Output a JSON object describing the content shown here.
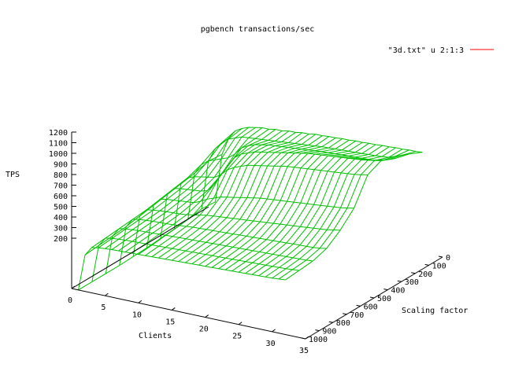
{
  "chart_data": {
    "type": "surface",
    "title": "pgbench transactions/sec",
    "xlabel": "Clients",
    "ylabel": "Scaling factor",
    "zlabel": "TPS",
    "legend": {
      "label": "\"3d.txt\" u 2:1:3",
      "position": "top-right"
    },
    "xlim": [
      0,
      35
    ],
    "ylim": [
      0,
      1000
    ],
    "zlim": [
      200,
      1200
    ],
    "x_ticks": [
      "0",
      "5",
      "10",
      "15",
      "20",
      "25",
      "30",
      "35"
    ],
    "y_ticks": [
      "0",
      "100",
      "200",
      "300",
      "400",
      "500",
      "600",
      "700",
      "800",
      "900",
      "1000"
    ],
    "z_ticks": [
      "200",
      "300",
      "400",
      "500",
      "600",
      "700",
      "800",
      "900",
      "1000",
      "1100",
      "1200"
    ],
    "grid": false,
    "colors": {
      "surface_top": "#00c000",
      "surface_underside": "#ff0000",
      "axes": "#000000"
    },
    "series": [
      {
        "scale": 0,
        "tps": [
          250,
          640,
          780,
          850,
          880,
          900,
          910,
          920,
          920,
          930,
          930,
          940,
          940,
          950,
          950,
          960,
          960,
          965,
          965,
          970,
          970,
          975,
          975,
          980,
          980,
          985,
          985,
          990,
          990,
          995,
          995,
          1000
        ]
      },
      {
        "scale": 100,
        "tps": [
          260,
          650,
          760,
          820,
          860,
          880,
          900,
          905,
          910,
          915,
          920,
          925,
          930,
          935,
          940,
          945,
          950,
          955,
          960,
          962,
          965,
          968,
          970,
          972,
          975,
          978,
          980,
          985,
          990,
          1010,
          1030,
          1050
        ]
      },
      {
        "scale": 200,
        "tps": [
          240,
          620,
          700,
          740,
          760,
          780,
          800,
          840,
          900,
          930,
          950,
          960,
          970,
          975,
          980,
          985,
          990,
          995,
          1000,
          1005,
          1010,
          1012,
          1015,
          1018,
          1020,
          1022,
          1025,
          1028,
          1030,
          1040,
          1060,
          1080
        ]
      },
      {
        "scale": 300,
        "tps": [
          230,
          600,
          660,
          680,
          690,
          700,
          710,
          740,
          820,
          900,
          940,
          960,
          980,
          990,
          1000,
          1010,
          1020,
          1030,
          1040,
          1050,
          1060,
          1065,
          1070,
          1075,
          1080,
          1085,
          1090,
          1095,
          1100,
          1110,
          1120,
          1130
        ]
      },
      {
        "scale": 400,
        "tps": [
          220,
          580,
          640,
          650,
          655,
          660,
          665,
          680,
          740,
          830,
          880,
          910,
          930,
          950,
          960,
          970,
          980,
          990,
          1000,
          1010,
          1015,
          1020,
          1025,
          1030,
          1035,
          1040,
          1045,
          1050,
          1055,
          1060,
          1070,
          1080
        ]
      },
      {
        "scale": 500,
        "tps": [
          210,
          560,
          620,
          630,
          635,
          640,
          645,
          650,
          670,
          700,
          720,
          740,
          750,
          760,
          770,
          780,
          790,
          800,
          805,
          810,
          815,
          820,
          825,
          830,
          835,
          840,
          845,
          850,
          855,
          860,
          870,
          880
        ]
      },
      {
        "scale": 600,
        "tps": [
          205,
          540,
          600,
          610,
          615,
          620,
          622,
          625,
          630,
          640,
          650,
          660,
          665,
          670,
          675,
          680,
          685,
          690,
          695,
          700,
          705,
          710,
          715,
          720,
          725,
          730,
          735,
          740,
          745,
          750,
          760,
          770
        ]
      },
      {
        "scale": 700,
        "tps": [
          200,
          520,
          590,
          600,
          605,
          608,
          610,
          612,
          615,
          620,
          625,
          630,
          632,
          635,
          638,
          640,
          642,
          645,
          648,
          650,
          652,
          655,
          658,
          660,
          662,
          665,
          668,
          670,
          672,
          675,
          680,
          690
        ]
      },
      {
        "scale": 800,
        "tps": [
          200,
          510,
          580,
          590,
          595,
          598,
          600,
          602,
          605,
          608,
          610,
          612,
          614,
          616,
          618,
          620,
          622,
          624,
          626,
          628,
          630,
          632,
          634,
          636,
          638,
          640,
          642,
          644,
          646,
          648,
          650,
          655
        ]
      },
      {
        "scale": 900,
        "tps": [
          200,
          500,
          570,
          580,
          585,
          588,
          590,
          592,
          594,
          596,
          598,
          600,
          602,
          604,
          606,
          608,
          610,
          612,
          614,
          616,
          618,
          620,
          622,
          624,
          626,
          628,
          630,
          632,
          634,
          636,
          640,
          645
        ]
      },
      {
        "scale": 1000,
        "tps": [
          200,
          490,
          560,
          570,
          575,
          578,
          580,
          582,
          584,
          586,
          588,
          590,
          592,
          594,
          596,
          598,
          600,
          602,
          604,
          606,
          608,
          610,
          612,
          614,
          616,
          618,
          620,
          622,
          624,
          626,
          630,
          635
        ]
      }
    ],
    "clients": [
      1,
      2,
      3,
      4,
      5,
      6,
      7,
      8,
      9,
      10,
      11,
      12,
      13,
      14,
      15,
      16,
      17,
      18,
      19,
      20,
      21,
      22,
      23,
      24,
      25,
      26,
      27,
      28,
      29,
      30,
      31,
      32
    ]
  }
}
